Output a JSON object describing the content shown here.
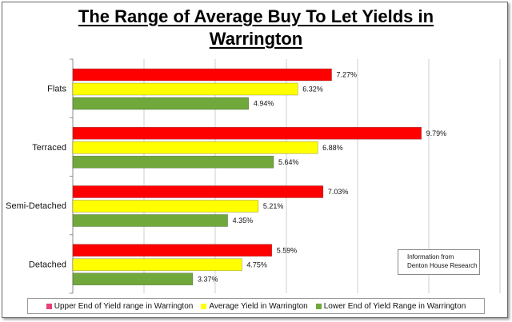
{
  "chart_data": {
    "type": "bar",
    "orientation": "horizontal",
    "title_line1": "The Range of Average Buy To Let Yields in",
    "title_line2": "Warrington",
    "categories": [
      "Flats",
      "Terraced",
      "Semi-Detached",
      "Detached"
    ],
    "series": [
      {
        "name": "Upper End of Yield range in Warrington",
        "color": "#ff0000",
        "values": [
          7.27,
          9.79,
          7.03,
          5.59
        ],
        "labels": [
          "7.27%",
          "9.79%",
          "7.03%",
          "5.59%"
        ]
      },
      {
        "name": "Average Yield in Warrington",
        "color": "#ffff00",
        "values": [
          6.32,
          6.88,
          5.21,
          4.75
        ],
        "labels": [
          "6.32%",
          "6.88%",
          "5.21%",
          "4.75%"
        ]
      },
      {
        "name": "Lower End of Yield Range in Warrington",
        "color": "#70a83b",
        "values": [
          4.94,
          5.64,
          4.35,
          3.37
        ],
        "labels": [
          "4.94%",
          "5.64%",
          "4.35%",
          "3.37%"
        ]
      }
    ],
    "xlim": [
      0,
      12
    ],
    "grid": true,
    "legend_position": "bottom",
    "legend_swatch_colors": [
      "#e8407a",
      "#ffff00",
      "#70a83b"
    ],
    "note_line1": "Information from",
    "note_line2": "Denton House Research"
  }
}
